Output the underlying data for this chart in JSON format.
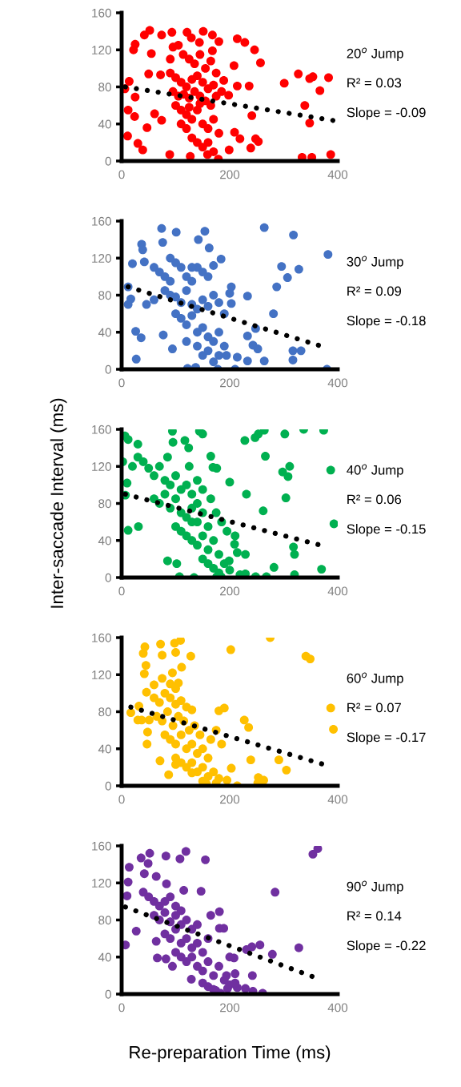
{
  "chart_data": [
    {
      "type": "scatter",
      "marker": "circle",
      "xlim": [
        0,
        400
      ],
      "xticks": [
        0,
        200,
        400
      ],
      "ylim": [
        0,
        160
      ],
      "yticks": [
        0,
        40,
        80,
        120,
        160
      ],
      "annotations": [
        "20$^{o}$ Jump",
        "R² = 0.03",
        "Slope = -0.09"
      ],
      "series": [
        {
          "color": "#ff0000",
          "x": [
            52,
            42,
            74,
            93,
            121,
            151,
            168,
            129,
            180,
            214,
            228,
            246,
            257,
            208,
            25,
            22,
            55,
            95,
            114,
            144,
            168,
            50,
            72,
            14,
            6,
            25,
            12,
            24,
            47,
            11,
            30,
            39,
            61,
            74,
            89,
            127,
            179,
            159,
            199,
            209,
            219,
            239,
            248,
            253,
            241,
            236,
            214,
            198,
            189,
            301,
            327,
            348,
            354,
            383,
            367,
            339,
            348,
            334,
            352,
            387,
            90,
            100,
            110,
            120,
            130,
            140,
            150,
            160,
            170,
            95,
            105,
            115,
            125,
            135,
            145,
            155,
            165,
            175,
            185,
            100,
            110,
            120,
            130,
            140,
            150,
            160,
            170,
            180,
            120,
            130,
            140,
            150,
            160,
            170,
            110,
            125,
            135,
            145,
            155,
            165,
            175,
            90,
            105,
            145,
            125
          ],
          "values": [
            141,
            136,
            136,
            139,
            139,
            140,
            136,
            133,
            129,
            132,
            128,
            120,
            106,
            103,
            126,
            120,
            116,
            123,
            115,
            128,
            119,
            94,
            93,
            86,
            78,
            69,
            55,
            48,
            36,
            27,
            19,
            12,
            51,
            44,
            7,
            5,
            2,
            7,
            12,
            31,
            24,
            14,
            24,
            21,
            49,
            81,
            81,
            71,
            87,
            84,
            94,
            89,
            91,
            90,
            76,
            60,
            41,
            4,
            4,
            7,
            95,
            90,
            85,
            80,
            88,
            92,
            85,
            78,
            82,
            75,
            70,
            72,
            68,
            75,
            70,
            65,
            60,
            70,
            75,
            60,
            55,
            50,
            45,
            55,
            40,
            35,
            45,
            30,
            35,
            25,
            20,
            15,
            20,
            10,
            40,
            110,
            105,
            115,
            100,
            108,
            95,
            110,
            125,
            62,
            58
          ]
        },
        {
          "type": "line",
          "color": "#000000",
          "line_style": "dotted",
          "marker": "none",
          "x": [
            7,
            400
          ],
          "values": [
            80,
            43
          ]
        }
      ]
    },
    {
      "type": "scatter",
      "marker": "circle",
      "xlim": [
        0,
        400
      ],
      "xticks": [
        0,
        200,
        400
      ],
      "ylim": [
        0,
        160
      ],
      "yticks": [
        0,
        40,
        80,
        120,
        160
      ],
      "annotations": [
        "30$^{o}$ Jump",
        "R² = 0.09",
        "Slope = -0.18"
      ],
      "series": [
        {
          "color": "#4472c4",
          "x": [
            74,
            101,
            154,
            264,
            318,
            382,
            37,
            76,
            142,
            39,
            20,
            42,
            296,
            328,
            307,
            287,
            233,
            203,
            203,
            184,
            162,
            12,
            17,
            12,
            46,
            26,
            36,
            27,
            281,
            248,
            233,
            243,
            252,
            233,
            264,
            317,
            332,
            317,
            380,
            178,
            210,
            122,
            137,
            214,
            194,
            94,
            77,
            60,
            70,
            80,
            90,
            100,
            110,
            120,
            130,
            140,
            150,
            160,
            170,
            80,
            90,
            100,
            110,
            120,
            130,
            140,
            150,
            160,
            170,
            180,
            190,
            100,
            110,
            120,
            130,
            140,
            150,
            160,
            170,
            180,
            190,
            120,
            140,
            150,
            160,
            170,
            180,
            130,
            90,
            60,
            200
          ],
          "values": [
            152,
            148,
            149,
            153,
            145,
            124,
            135,
            137,
            140,
            129,
            114,
            116,
            111,
            108,
            99,
            89,
            79,
            89,
            71,
            119,
            131,
            89,
            76,
            70,
            70,
            41,
            34,
            11,
            60,
            44,
            36,
            26,
            22,
            9,
            9,
            20,
            20,
            10,
            0,
            0,
            0,
            1,
            2,
            13,
            15,
            22,
            37,
            110,
            105,
            100,
            95,
            115,
            110,
            100,
            95,
            110,
            105,
            100,
            112,
            85,
            80,
            78,
            72,
            85,
            70,
            65,
            75,
            68,
            80,
            72,
            60,
            60,
            55,
            48,
            58,
            40,
            45,
            35,
            30,
            40,
            25,
            30,
            25,
            15,
            20,
            8,
            15,
            110,
            120,
            75,
            82
          ]
        },
        {
          "type": "line",
          "color": "#000000",
          "line_style": "dotted",
          "marker": "none",
          "x": [
            12,
            375
          ],
          "values": [
            89,
            24
          ]
        }
      ]
    },
    {
      "type": "scatter",
      "marker": "circle",
      "xlim": [
        0,
        400
      ],
      "xticks": [
        0,
        200,
        400
      ],
      "ylim": [
        0,
        160
      ],
      "yticks": [
        0,
        40,
        80,
        120,
        160
      ],
      "ylabel": "Inter-saccade Interval (ms)",
      "annotations": [
        "40$^{o}$ Jump",
        "R² = 0.06",
        "Slope = -0.15"
      ],
      "series": [
        {
          "color": "#00b050",
          "x": [
            94,
            144,
            150,
            264,
            253,
            247,
            228,
            302,
            337,
            374,
            95,
            117,
            124,
            266,
            6,
            12,
            30,
            2,
            387,
            298,
            311,
            308,
            304,
            262,
            231,
            200,
            393,
            12,
            31,
            10,
            7,
            85,
            102,
            107,
            318,
            320,
            282,
            320,
            370,
            248,
            268,
            229,
            219,
            209,
            214,
            229,
            199,
            176,
            184,
            134,
            169,
            176,
            165,
            20,
            30,
            40,
            50,
            60,
            70,
            80,
            90,
            100,
            110,
            120,
            130,
            140,
            150,
            60,
            70,
            80,
            90,
            100,
            110,
            120,
            130,
            140,
            150,
            160,
            100,
            110,
            120,
            130,
            140,
            150,
            160,
            170,
            180,
            150,
            160,
            170,
            180,
            190,
            200,
            130,
            140,
            165,
            175,
            185,
            195,
            210,
            85,
            125
          ],
          "values": [
            158,
            158,
            155,
            159,
            155,
            151,
            148,
            155,
            160,
            159,
            146,
            148,
            140,
            131,
            153,
            149,
            144,
            125,
            116,
            114,
            120,
            109,
            86,
            72,
            90,
            103,
            58,
            51,
            55,
            102,
            89,
            18,
            15,
            1,
            33,
            25,
            11,
            3,
            9,
            1,
            1,
            4,
            3,
            36,
            27,
            25,
            18,
            1,
            1,
            0,
            119,
            118,
            131,
            120,
            130,
            125,
            118,
            110,
            120,
            105,
            100,
            110,
            95,
            100,
            90,
            105,
            95,
            85,
            80,
            90,
            75,
            85,
            70,
            65,
            75,
            60,
            70,
            55,
            55,
            50,
            45,
            40,
            35,
            45,
            30,
            40,
            25,
            20,
            15,
            10,
            5,
            15,
            8,
            60,
            80,
            85,
            70,
            60,
            50,
            45,
            130,
            120
          ]
        },
        {
          "type": "line",
          "color": "#000000",
          "line_style": "dotted",
          "marker": "none",
          "x": [
            7,
            374
          ],
          "values": [
            90,
            34
          ]
        }
      ]
    },
    {
      "type": "scatter",
      "marker": "circle",
      "xlim": [
        0,
        400
      ],
      "xticks": [
        0,
        200,
        400
      ],
      "ylim": [
        0,
        160
      ],
      "yticks": [
        0,
        40,
        80,
        120,
        160
      ],
      "annotations": [
        "60$^{o}$ Jump",
        "R² = 0.07",
        "Slope = -0.17"
      ],
      "series": [
        {
          "color": "#ffc000",
          "x": [
            275,
            109,
            98,
            72,
            43,
            100,
            40,
            75,
            128,
            202,
            341,
            349,
            45,
            111,
            42,
            94,
            75,
            60,
            105,
            46,
            387,
            392,
            17,
            32,
            30,
            37,
            51,
            190,
            180,
            227,
            235,
            48,
            47,
            71,
            87,
            239,
            291,
            305,
            203,
            195,
            214,
            157,
            175,
            252,
            263,
            253,
            100,
            130,
            60,
            70,
            80,
            90,
            100,
            110,
            120,
            130,
            65,
            75,
            85,
            95,
            105,
            115,
            125,
            135,
            145,
            80,
            90,
            100,
            110,
            120,
            130,
            140,
            150,
            160,
            100,
            110,
            120,
            130,
            140,
            150,
            160,
            170,
            180,
            150,
            165,
            175,
            185,
            90,
            100
          ],
          "values": [
            160,
            157,
            154,
            153,
            150,
            144,
            143,
            141,
            140,
            147,
            140,
            137,
            130,
            128,
            121,
            122,
            116,
            109,
            111,
            101,
            84,
            61,
            79,
            86,
            71,
            71,
            71,
            84,
            81,
            71,
            63,
            58,
            45,
            27,
            12,
            28,
            28,
            17,
            19,
            6,
            0,
            2,
            3,
            3,
            6,
            9,
            23,
            14,
            95,
            90,
            100,
            95,
            88,
            92,
            85,
            82,
            75,
            70,
            80,
            65,
            75,
            70,
            60,
            65,
            55,
            55,
            50,
            45,
            55,
            40,
            45,
            35,
            40,
            30,
            30,
            25,
            20,
            25,
            15,
            20,
            10,
            15,
            8,
            5,
            50,
            60,
            45,
            110,
            105
          ]
        },
        {
          "type": "line",
          "color": "#000000",
          "line_style": "dotted",
          "marker": "none",
          "x": [
            17,
            380
          ],
          "values": [
            85,
            22
          ]
        }
      ]
    },
    {
      "type": "scatter",
      "marker": "circle",
      "xlim": [
        0,
        400
      ],
      "xticks": [
        0,
        200,
        400
      ],
      "ylim": [
        0,
        160
      ],
      "yticks": [
        0,
        40,
        80,
        120,
        160
      ],
      "xlabel": "Re-preparation Time (ms)",
      "annotations": [
        "90$^{o}$ Jump",
        "R² = 0.14",
        "Slope = -0.22"
      ],
      "series": [
        {
          "color": "#7030a0",
          "x": [
            363,
            354,
            52,
            36,
            82,
            119,
            108,
            155,
            49,
            14,
            42,
            64,
            12,
            83,
            284,
            115,
            147,
            10,
            165,
            181,
            181,
            189,
            27,
            7,
            64,
            328,
            279,
            256,
            241,
            231,
            208,
            242,
            210,
            194,
            66,
            82,
            261,
            243,
            229,
            214,
            196,
            183,
            174,
            129,
            94,
            40,
            50,
            60,
            70,
            80,
            90,
            100,
            110,
            60,
            70,
            80,
            90,
            100,
            110,
            120,
            130,
            140,
            80,
            90,
            100,
            110,
            120,
            130,
            140,
            150,
            160,
            100,
            110,
            120,
            130,
            140,
            150,
            160,
            170,
            180,
            190,
            200,
            150,
            160,
            170,
            210,
            200
          ],
          "values": [
            157,
            151,
            152,
            147,
            149,
            154,
            146,
            145,
            141,
            137,
            130,
            127,
            121,
            119,
            110,
            112,
            111,
            106,
            85,
            89,
            71,
            71,
            68,
            53,
            57,
            50,
            43,
            53,
            51,
            48,
            39,
            20,
            22,
            20,
            39,
            38,
            1,
            3,
            6,
            7,
            6,
            1,
            4,
            16,
            30,
            110,
            105,
            100,
            95,
            100,
            105,
            95,
            90,
            85,
            80,
            88,
            78,
            85,
            75,
            80,
            70,
            75,
            65,
            60,
            70,
            55,
            60,
            50,
            55,
            45,
            60,
            45,
            40,
            35,
            40,
            30,
            25,
            35,
            20,
            30,
            15,
            10,
            12,
            8,
            5,
            12,
            40
          ]
        },
        {
          "type": "line",
          "color": "#000000",
          "line_style": "dotted",
          "marker": "none",
          "x": [
            7,
            362
          ],
          "values": [
            94,
            17
          ]
        }
      ]
    }
  ]
}
